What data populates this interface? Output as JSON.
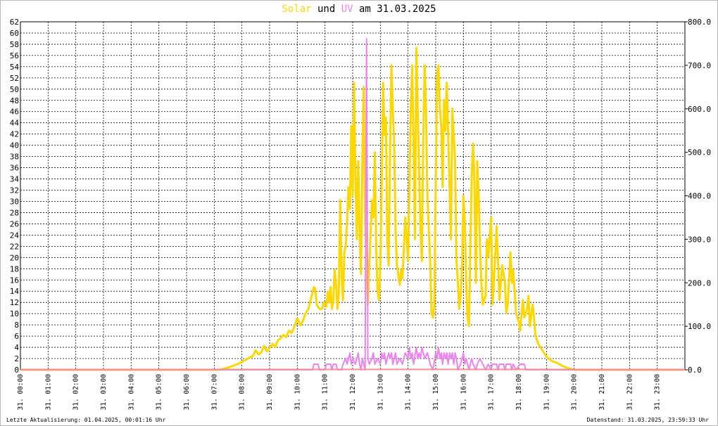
{
  "title": {
    "solar": "Solar",
    "und": " und ",
    "uv": "UV",
    "rest": " am 31.03.2025"
  },
  "footer": {
    "left": "Letzte Aktualisierung: 01.04.2025, 00:01:16 Uhr",
    "right": "Datenstand: 31.03.2025, 23:59:33 Uhr"
  },
  "colors": {
    "solar": "#ffd700",
    "uv": "#ee82ee",
    "baseline": "#ff8c8c",
    "grid": "#000000"
  },
  "chart_data": {
    "type": "line",
    "grid": true,
    "x": {
      "label": "",
      "range": [
        0,
        24
      ],
      "unit": "hours",
      "ticks": [
        "31. 00:00",
        "31. 01:00",
        "31. 02:00",
        "31. 03:00",
        "31. 04:00",
        "31. 05:00",
        "31. 06:00",
        "31. 07:00",
        "31. 08:00",
        "31. 09:00",
        "31. 10:00",
        "31. 11:00",
        "31. 12:00",
        "31. 13:00",
        "31. 14:00",
        "31. 15:00",
        "31. 16:00",
        "31. 17:00",
        "31. 18:00",
        "31. 19:00",
        "31. 20:00",
        "31. 21:00",
        "31. 22:00",
        "31. 23:00"
      ]
    },
    "y_left": {
      "range": [
        0,
        62
      ],
      "ticks": [
        "0",
        "2",
        "4",
        "6",
        "8",
        "10",
        "12",
        "14",
        "16",
        "18",
        "20",
        "22",
        "24",
        "26",
        "28",
        "30",
        "32",
        "34",
        "36",
        "38",
        "40",
        "42",
        "44",
        "46",
        "48",
        "50",
        "52",
        "54",
        "56",
        "58",
        "60",
        "62"
      ]
    },
    "y_right": {
      "range": [
        0,
        800
      ],
      "ticks": [
        "0.0",
        "100.0",
        "200.0",
        "300.0",
        "400.0",
        "500.0",
        "600.0",
        "700.0",
        "800.0"
      ]
    },
    "series": [
      {
        "name": "Solar",
        "axis": "right",
        "color": "#ffd700",
        "points": [
          [
            0,
            0
          ],
          [
            7.2,
            0
          ],
          [
            7.5,
            5
          ],
          [
            7.8,
            12
          ],
          [
            8.0,
            18
          ],
          [
            8.2,
            25
          ],
          [
            8.4,
            32
          ],
          [
            8.5,
            45
          ],
          [
            8.6,
            35
          ],
          [
            8.7,
            40
          ],
          [
            8.8,
            55
          ],
          [
            8.9,
            42
          ],
          [
            9.0,
            50
          ],
          [
            9.1,
            60
          ],
          [
            9.2,
            52
          ],
          [
            9.3,
            68
          ],
          [
            9.4,
            72
          ],
          [
            9.5,
            80
          ],
          [
            9.6,
            75
          ],
          [
            9.7,
            90
          ],
          [
            9.8,
            85
          ],
          [
            9.9,
            100
          ],
          [
            10.0,
            118
          ],
          [
            10.05,
            112
          ],
          [
            10.1,
            102
          ],
          [
            10.2,
            112
          ],
          [
            10.3,
            130
          ],
          [
            10.4,
            140
          ],
          [
            10.5,
            165
          ],
          [
            10.6,
            190
          ],
          [
            10.65,
            185
          ],
          [
            10.7,
            150
          ],
          [
            10.8,
            140
          ],
          [
            10.9,
            140
          ],
          [
            10.95,
            155
          ],
          [
            11.05,
            145
          ],
          [
            11.1,
            180
          ],
          [
            11.15,
            155
          ],
          [
            11.2,
            190
          ],
          [
            11.25,
            140
          ],
          [
            11.3,
            160
          ],
          [
            11.35,
            230
          ],
          [
            11.4,
            195
          ],
          [
            11.45,
            140
          ],
          [
            11.5,
            175
          ],
          [
            11.55,
            390
          ],
          [
            11.6,
            220
          ],
          [
            11.65,
            160
          ],
          [
            11.7,
            270
          ],
          [
            11.75,
            285
          ],
          [
            11.8,
            340
          ],
          [
            11.85,
            420
          ],
          [
            11.9,
            370
          ],
          [
            11.95,
            560
          ],
          [
            12.0,
            400
          ],
          [
            12.05,
            660
          ],
          [
            12.1,
            450
          ],
          [
            12.15,
            300
          ],
          [
            12.2,
            480
          ],
          [
            12.25,
            320
          ],
          [
            12.3,
            220
          ],
          [
            12.35,
            480
          ],
          [
            12.4,
            650
          ],
          [
            12.45,
            350
          ],
          [
            12.5,
            240
          ],
          [
            12.55,
            150
          ],
          [
            12.6,
            240
          ],
          [
            12.7,
            390
          ],
          [
            12.75,
            350
          ],
          [
            12.8,
            500
          ],
          [
            12.85,
            280
          ],
          [
            12.9,
            180
          ],
          [
            12.95,
            160
          ],
          [
            13.0,
            240
          ],
          [
            13.05,
            430
          ],
          [
            13.1,
            660
          ],
          [
            13.15,
            540
          ],
          [
            13.2,
            580
          ],
          [
            13.25,
            300
          ],
          [
            13.3,
            240
          ],
          [
            13.35,
            500
          ],
          [
            13.4,
            700
          ],
          [
            13.45,
            600
          ],
          [
            13.5,
            520
          ],
          [
            13.55,
            320
          ],
          [
            13.6,
            240
          ],
          [
            13.7,
            195
          ],
          [
            13.75,
            230
          ],
          [
            13.8,
            210
          ],
          [
            13.9,
            350
          ],
          [
            14.0,
            250
          ],
          [
            14.1,
            600
          ],
          [
            14.15,
            700
          ],
          [
            14.2,
            520
          ],
          [
            14.25,
            300
          ],
          [
            14.3,
            740
          ],
          [
            14.35,
            600
          ],
          [
            14.4,
            460
          ],
          [
            14.45,
            320
          ],
          [
            14.5,
            250
          ],
          [
            14.55,
            540
          ],
          [
            14.6,
            700
          ],
          [
            14.65,
            600
          ],
          [
            14.7,
            400
          ],
          [
            14.75,
            320
          ],
          [
            14.8,
            250
          ],
          [
            14.85,
            130
          ],
          [
            14.9,
            120
          ],
          [
            14.95,
            150
          ],
          [
            15.0,
            420
          ],
          [
            15.05,
            680
          ],
          [
            15.1,
            700
          ],
          [
            15.15,
            600
          ],
          [
            15.2,
            560
          ],
          [
            15.25,
            420
          ],
          [
            15.3,
            620
          ],
          [
            15.35,
            550
          ],
          [
            15.4,
            660
          ],
          [
            15.45,
            540
          ],
          [
            15.5,
            420
          ],
          [
            15.55,
            300
          ],
          [
            15.6,
            600
          ],
          [
            15.65,
            540
          ],
          [
            15.7,
            480
          ],
          [
            15.75,
            250
          ],
          [
            15.8,
            200
          ],
          [
            15.85,
            140
          ],
          [
            15.9,
            170
          ],
          [
            15.95,
            240
          ],
          [
            16.0,
            400
          ],
          [
            16.05,
            340
          ],
          [
            16.1,
            200
          ],
          [
            16.15,
            120
          ],
          [
            16.2,
            100
          ],
          [
            16.3,
            450
          ],
          [
            16.35,
            520
          ],
          [
            16.4,
            420
          ],
          [
            16.45,
            200
          ],
          [
            16.5,
            480
          ],
          [
            16.55,
            400
          ],
          [
            16.6,
            280
          ],
          [
            16.65,
            200
          ],
          [
            16.7,
            150
          ],
          [
            16.8,
            170
          ],
          [
            16.85,
            300
          ],
          [
            16.9,
            260
          ],
          [
            17.0,
            350
          ],
          [
            17.05,
            150
          ],
          [
            17.1,
            200
          ],
          [
            17.2,
            330
          ],
          [
            17.25,
            250
          ],
          [
            17.3,
            160
          ],
          [
            17.35,
            200
          ],
          [
            17.4,
            240
          ],
          [
            17.5,
            200
          ],
          [
            17.55,
            130
          ],
          [
            17.6,
            150
          ],
          [
            17.7,
            270
          ],
          [
            17.75,
            200
          ],
          [
            17.8,
            230
          ],
          [
            17.85,
            180
          ],
          [
            17.9,
            130
          ],
          [
            18.0,
            110
          ],
          [
            18.05,
            90
          ],
          [
            18.1,
            130
          ],
          [
            18.15,
            160
          ],
          [
            18.2,
            120
          ],
          [
            18.3,
            140
          ],
          [
            18.35,
            170
          ],
          [
            18.4,
            100
          ],
          [
            18.5,
            150
          ],
          [
            18.55,
            120
          ],
          [
            18.6,
            80
          ],
          [
            18.7,
            60
          ],
          [
            18.8,
            50
          ],
          [
            18.9,
            40
          ],
          [
            19.0,
            30
          ],
          [
            19.2,
            20
          ],
          [
            19.4,
            15
          ],
          [
            19.6,
            8
          ],
          [
            19.8,
            3
          ],
          [
            20.0,
            0
          ],
          [
            24,
            0
          ]
        ]
      },
      {
        "name": "UV",
        "axis": "left",
        "color": "#ee82ee",
        "points": [
          [
            0,
            0
          ],
          [
            10.55,
            0
          ],
          [
            10.6,
            1
          ],
          [
            10.75,
            1
          ],
          [
            10.8,
            0
          ],
          [
            11.0,
            0
          ],
          [
            11.05,
            1
          ],
          [
            11.2,
            1
          ],
          [
            11.25,
            0
          ],
          [
            11.3,
            1
          ],
          [
            11.4,
            1
          ],
          [
            11.45,
            0
          ],
          [
            11.6,
            0
          ],
          [
            11.65,
            1
          ],
          [
            11.75,
            2
          ],
          [
            11.8,
            1
          ],
          [
            11.85,
            2
          ],
          [
            11.9,
            3
          ],
          [
            11.95,
            1
          ],
          [
            12.0,
            2
          ],
          [
            12.1,
            1
          ],
          [
            12.15,
            2
          ],
          [
            12.2,
            3
          ],
          [
            12.25,
            1
          ],
          [
            12.3,
            0
          ],
          [
            12.35,
            2
          ],
          [
            12.4,
            1
          ],
          [
            12.45,
            0
          ],
          [
            12.5,
            59
          ],
          [
            12.55,
            2
          ],
          [
            12.6,
            1
          ],
          [
            12.7,
            2
          ],
          [
            12.75,
            3
          ],
          [
            12.8,
            1
          ],
          [
            12.9,
            2
          ],
          [
            13.0,
            1
          ],
          [
            13.05,
            3
          ],
          [
            13.1,
            2
          ],
          [
            13.15,
            3
          ],
          [
            13.2,
            1
          ],
          [
            13.3,
            3
          ],
          [
            13.35,
            2
          ],
          [
            13.4,
            3
          ],
          [
            13.45,
            1
          ],
          [
            13.5,
            2
          ],
          [
            13.55,
            3
          ],
          [
            13.6,
            1
          ],
          [
            13.7,
            2
          ],
          [
            13.8,
            1
          ],
          [
            13.9,
            3
          ],
          [
            14.0,
            2
          ],
          [
            14.05,
            4
          ],
          [
            14.1,
            2
          ],
          [
            14.15,
            3
          ],
          [
            14.2,
            1
          ],
          [
            14.3,
            4
          ],
          [
            14.35,
            2
          ],
          [
            14.4,
            3
          ],
          [
            14.45,
            2
          ],
          [
            14.5,
            4
          ],
          [
            14.55,
            3
          ],
          [
            14.6,
            2
          ],
          [
            14.7,
            3
          ],
          [
            14.75,
            2
          ],
          [
            14.8,
            1
          ],
          [
            14.9,
            0
          ],
          [
            15.0,
            3
          ],
          [
            15.05,
            2
          ],
          [
            15.1,
            4
          ],
          [
            15.15,
            2
          ],
          [
            15.2,
            3
          ],
          [
            15.25,
            1
          ],
          [
            15.3,
            3
          ],
          [
            15.35,
            2
          ],
          [
            15.4,
            3
          ],
          [
            15.45,
            1
          ],
          [
            15.5,
            3
          ],
          [
            15.55,
            2
          ],
          [
            15.6,
            3
          ],
          [
            15.65,
            1
          ],
          [
            15.7,
            3
          ],
          [
            15.75,
            2
          ],
          [
            15.8,
            0
          ],
          [
            15.9,
            1
          ],
          [
            15.95,
            2
          ],
          [
            16.0,
            3
          ],
          [
            16.05,
            1
          ],
          [
            16.1,
            2
          ],
          [
            16.15,
            1
          ],
          [
            16.2,
            0
          ],
          [
            16.3,
            2
          ],
          [
            16.35,
            1
          ],
          [
            16.45,
            0
          ],
          [
            16.5,
            1
          ],
          [
            16.6,
            2
          ],
          [
            16.7,
            1
          ],
          [
            16.8,
            0
          ],
          [
            16.9,
            1
          ],
          [
            17.0,
            0
          ],
          [
            17.05,
            1
          ],
          [
            17.2,
            1
          ],
          [
            17.25,
            0
          ],
          [
            17.3,
            1
          ],
          [
            17.45,
            1
          ],
          [
            17.5,
            0
          ],
          [
            17.55,
            1
          ],
          [
            17.7,
            1
          ],
          [
            17.75,
            0
          ],
          [
            17.8,
            1
          ],
          [
            17.9,
            0
          ],
          [
            18.05,
            1
          ],
          [
            18.2,
            1
          ],
          [
            18.25,
            0
          ],
          [
            24,
            0
          ]
        ]
      }
    ]
  }
}
